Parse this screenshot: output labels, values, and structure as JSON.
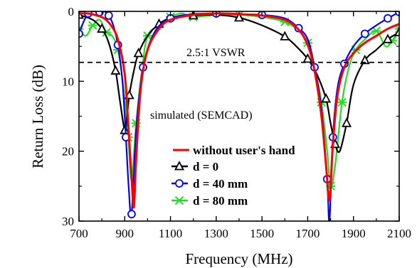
{
  "chart_data": {
    "type": "line",
    "xlabel": "Frequency (MHz)",
    "ylabel": "Return Loss (dB)",
    "xlim": [
      700,
      2100
    ],
    "ylim": [
      0,
      30
    ],
    "y_inverted": true,
    "x_ticks": [
      700,
      900,
      1100,
      1300,
      1500,
      1700,
      1900,
      2100
    ],
    "y_ticks": [
      0,
      10,
      20,
      30
    ],
    "grid": false,
    "legend_position": "lower-center",
    "annotations": {
      "vswr_label": "2.5:1 VSWR",
      "vswr_level": 7.3,
      "simulated_label": "simulated (SEMCAD)"
    },
    "series": [
      {
        "name": "without user's hand",
        "color": "#ff0000",
        "marker": "none",
        "x": [
          700,
          740,
          780,
          810,
          840,
          870,
          900,
          915,
          930,
          940,
          950,
          970,
          1000,
          1050,
          1100,
          1200,
          1300,
          1400,
          1500,
          1600,
          1660,
          1700,
          1730,
          1760,
          1780,
          1795,
          1810,
          1830,
          1860,
          1900,
          1950,
          2000,
          2050,
          2100
        ],
        "y": [
          0.3,
          0.3,
          0.6,
          1.0,
          2.0,
          4.0,
          9.0,
          16.0,
          24.0,
          28.0,
          21.0,
          11.0,
          5.5,
          2.5,
          1.2,
          0.5,
          0.3,
          0.4,
          0.6,
          1.2,
          2.6,
          4.8,
          8.5,
          15.0,
          22.0,
          27.0,
          19.0,
          12.0,
          8.0,
          6.0,
          4.5,
          3.5,
          2.5,
          1.8
        ]
      },
      {
        "name": "d = 0",
        "color": "#000000",
        "marker": "triangle",
        "x": [
          700,
          760,
          800,
          830,
          860,
          880,
          900,
          910,
          920,
          940,
          960,
          1000,
          1050,
          1100,
          1200,
          1300,
          1400,
          1500,
          1600,
          1650,
          1700,
          1740,
          1780,
          1800,
          1820,
          1840,
          1870,
          1900,
          1950,
          2000,
          2050,
          2100
        ],
        "y": [
          0.5,
          1.2,
          2.5,
          4.5,
          8.5,
          13.0,
          17.0,
          15.0,
          12.0,
          8.5,
          6.0,
          3.5,
          1.8,
          1.0,
          0.6,
          0.5,
          0.9,
          2.0,
          3.6,
          5.0,
          6.8,
          9.0,
          12.5,
          16.0,
          19.0,
          20.0,
          16.0,
          10.5,
          7.0,
          5.5,
          4.0,
          3.0
        ]
      },
      {
        "name": "d = 40 mm",
        "color": "#0000ff",
        "marker": "circle",
        "x": [
          700,
          720,
          740,
          760,
          790,
          810,
          830,
          850,
          870,
          890,
          905,
          918,
          930,
          950,
          980,
          1030,
          1100,
          1200,
          1300,
          1400,
          1500,
          1600,
          1660,
          1700,
          1730,
          1760,
          1785,
          1795,
          1810,
          1830,
          1860,
          1900,
          1950,
          2000,
          2050,
          2100
        ],
        "y": [
          3.2,
          1.5,
          0.3,
          0.0,
          0.1,
          0.0,
          0.6,
          2.0,
          4.8,
          10.0,
          18.0,
          25.5,
          29.0,
          17.0,
          8.0,
          3.0,
          1.0,
          0.4,
          0.3,
          0.4,
          0.5,
          1.0,
          2.4,
          4.0,
          8.0,
          14.0,
          24.0,
          30.0,
          18.0,
          11.0,
          7.5,
          5.0,
          3.2,
          2.0,
          1.0,
          0.1
        ]
      },
      {
        "name": "d = 80 mm",
        "color": "#22dd22",
        "marker": "x",
        "x": [
          700,
          730,
          760,
          790,
          820,
          845,
          870,
          895,
          915,
          930,
          950,
          975,
          1000,
          1050,
          1100,
          1150,
          1200,
          1300,
          1400,
          1500,
          1600,
          1660,
          1700,
          1730,
          1760,
          1785,
          1800,
          1820,
          1850,
          1880,
          1910,
          1950,
          2000,
          2040,
          2070,
          2100
        ],
        "y": [
          2.5,
          3.5,
          2.0,
          1.2,
          3.0,
          3.5,
          5.5,
          11.0,
          18.0,
          24.0,
          16.0,
          8.5,
          3.5,
          2.0,
          0.8,
          0.3,
          0.8,
          0.5,
          0.5,
          0.8,
          1.5,
          2.8,
          4.5,
          8.0,
          13.0,
          20.0,
          25.0,
          22.0,
          13.0,
          8.0,
          5.5,
          4.0,
          2.8,
          5.0,
          4.2,
          2.5
        ]
      }
    ]
  }
}
